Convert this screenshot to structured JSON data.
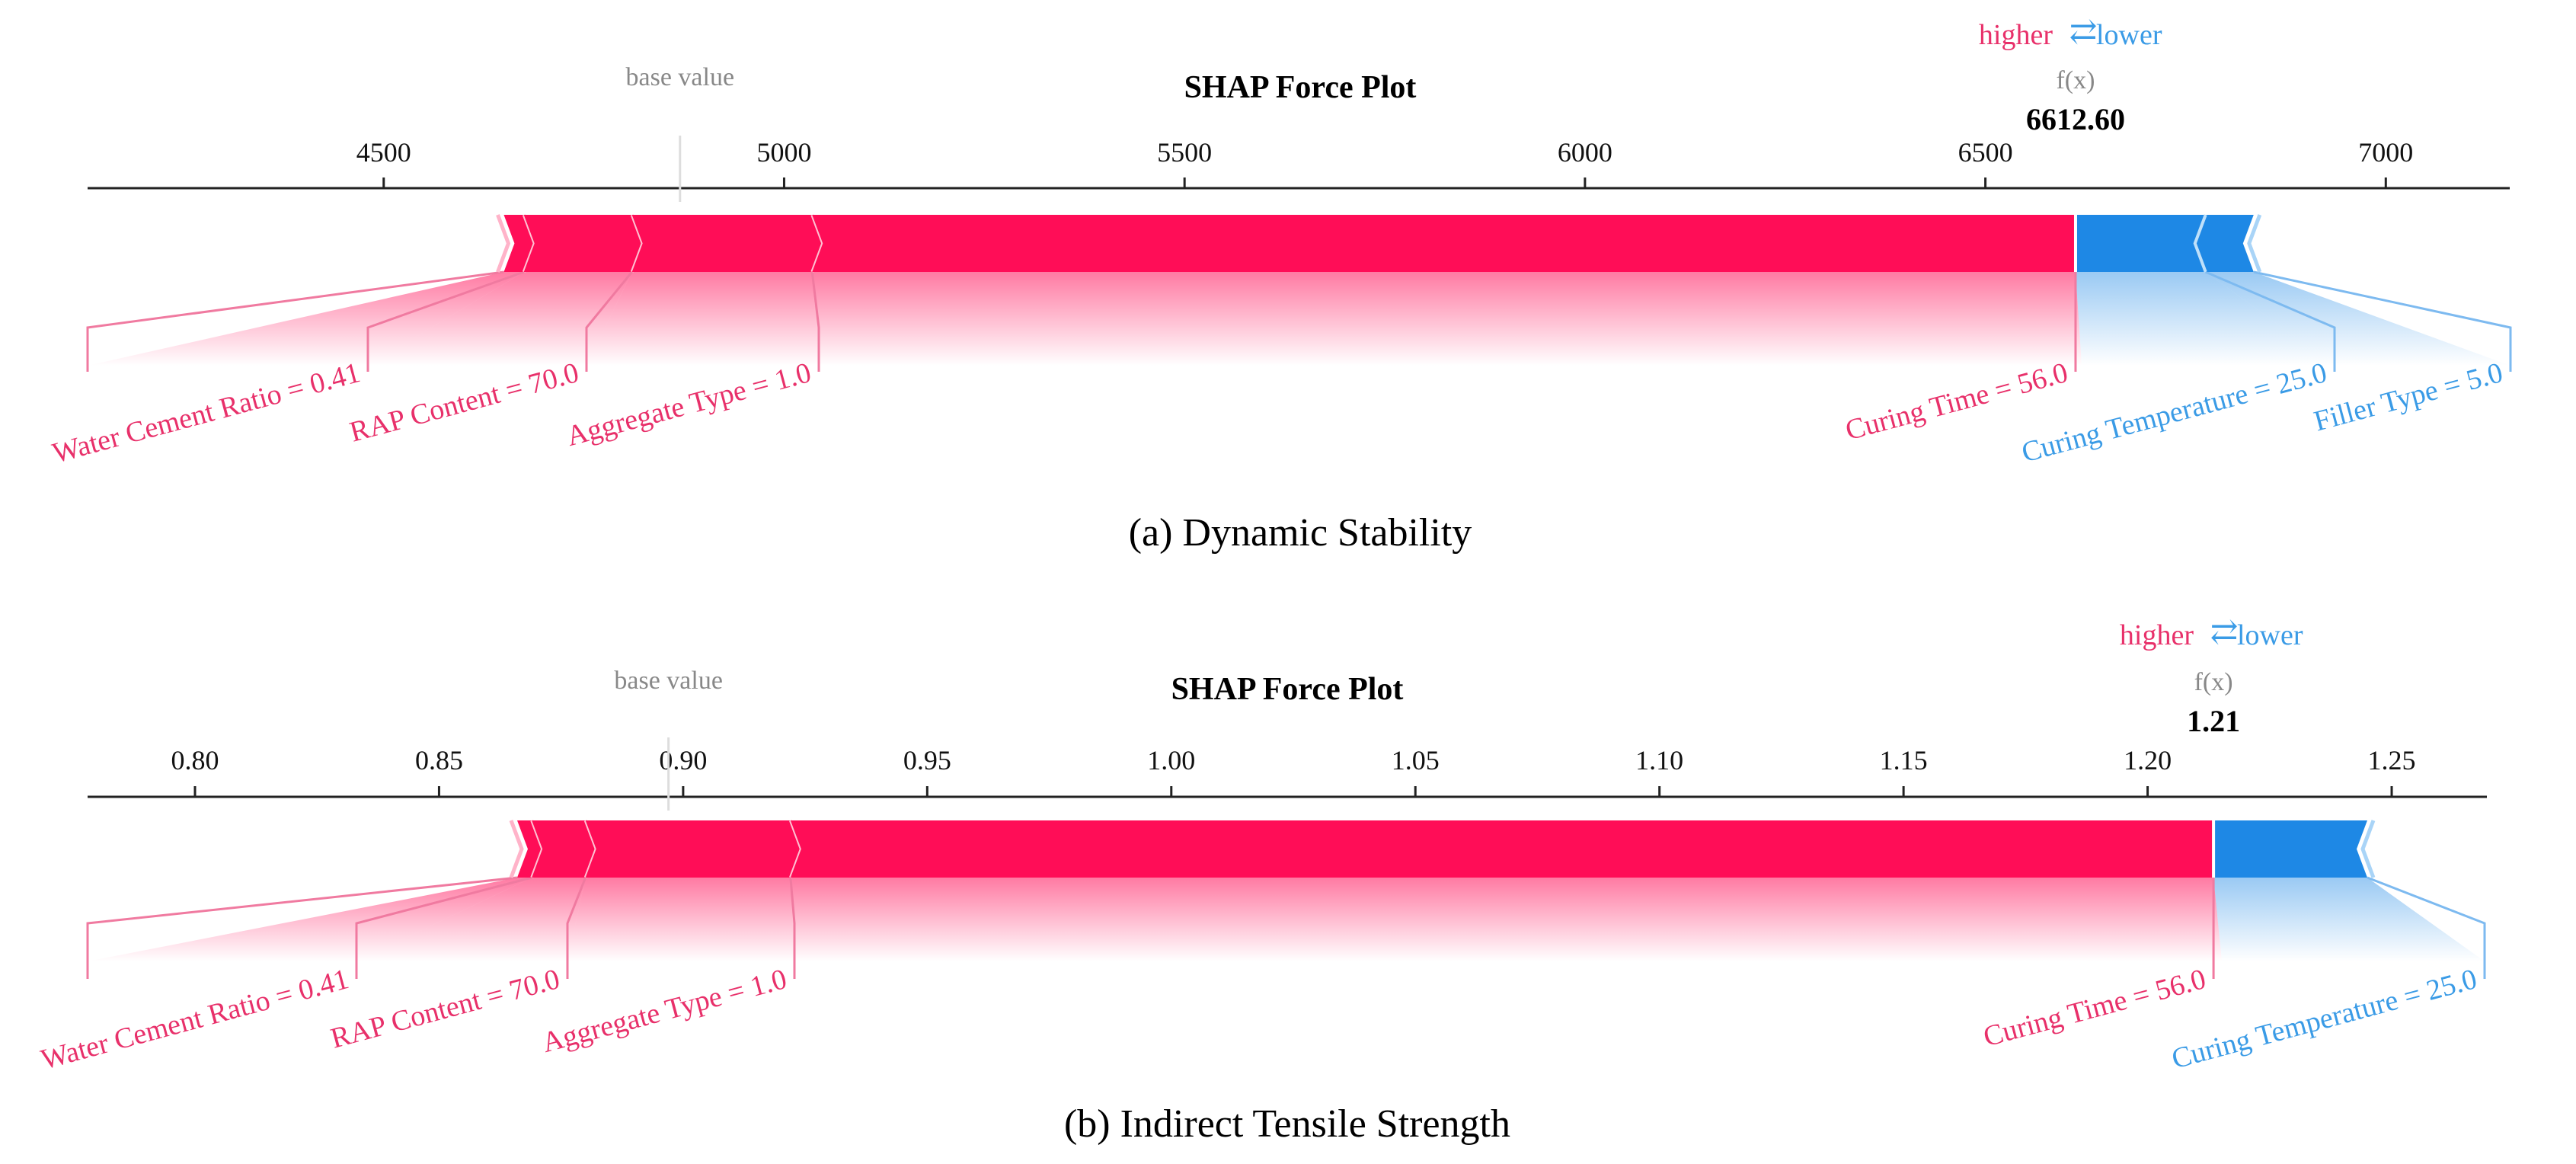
{
  "colors": {
    "positive": "#ff0d57",
    "negative": "#1e88e5",
    "positive_label": "#e8306a",
    "negative_label": "#3a9be6",
    "muted": "#888888",
    "axis": "#222222"
  },
  "chart_data": [
    {
      "type": "force",
      "title": "SHAP Force Plot",
      "caption": "(a) Dynamic Stability",
      "legend_higher": "higher",
      "legend_lower": "lower",
      "legend_arrows": "⇄",
      "base_label": "base value",
      "fx_label": "f(x)",
      "fx_text": "6612.60",
      "fx": 6612.6,
      "base_value": 4870,
      "xlim": [
        4135,
        7150
      ],
      "ticks": [
        4500,
        5000,
        5500,
        6000,
        6500,
        7000
      ],
      "tick_labels": [
        "4500",
        "5000",
        "5500",
        "6000",
        "6500",
        "7000"
      ],
      "positive_boundaries": [
        4650,
        4675,
        4810,
        5035,
        6612.6
      ],
      "negative_boundaries": [
        6612.6,
        6775,
        6835
      ],
      "features": [
        {
          "label": "Water Cement Ratio = 0.41",
          "start": 4650,
          "end": 4675,
          "sign": "positive"
        },
        {
          "label": "RAP Content = 70.0",
          "start": 4675,
          "end": 4810,
          "sign": "positive"
        },
        {
          "label": "Aggregate Type = 1.0",
          "start": 4810,
          "end": 5035,
          "sign": "positive"
        },
        {
          "label": "Curing Time = 56.0",
          "start": 5035,
          "end": 6612.6,
          "sign": "positive"
        },
        {
          "label": "Curing Temperature = 25.0",
          "start": 6612.6,
          "end": 6775,
          "sign": "negative"
        },
        {
          "label": "Filler Type = 5.0",
          "start": 6775,
          "end": 6835,
          "sign": "negative"
        }
      ]
    },
    {
      "type": "force",
      "title": "SHAP Force Plot",
      "caption": "(b) Indirect Tensile Strength",
      "legend_higher": "higher",
      "legend_lower": "lower",
      "legend_arrows": "⇄",
      "base_label": "base value",
      "fx_label": "f(x)",
      "fx_text": "1.21",
      "fx": 1.2135,
      "base_value": 0.897,
      "xlim": [
        0.778,
        1.2695
      ],
      "ticks": [
        0.8,
        0.85,
        0.9,
        0.95,
        1.0,
        1.05,
        1.1,
        1.15,
        1.2,
        1.25
      ],
      "tick_labels": [
        "0.80",
        "0.85",
        "0.90",
        "0.95",
        "1.00",
        "1.05",
        "1.10",
        "1.15",
        "1.20",
        "1.25"
      ],
      "positive_boundaries": [
        0.866,
        0.869,
        0.88,
        0.922,
        1.2135
      ],
      "negative_boundaries": [
        1.2135,
        1.245
      ],
      "features": [
        {
          "label": "Water Cement Ratio = 0.41",
          "start": 0.866,
          "end": 0.869,
          "sign": "positive"
        },
        {
          "label": "RAP Content = 70.0",
          "start": 0.869,
          "end": 0.88,
          "sign": "positive"
        },
        {
          "label": "Aggregate Type = 1.0",
          "start": 0.88,
          "end": 0.922,
          "sign": "positive"
        },
        {
          "label": "Curing Time = 56.0",
          "start": 0.922,
          "end": 1.2135,
          "sign": "positive"
        },
        {
          "label": "Curing Temperature = 25.0",
          "start": 1.2135,
          "end": 1.245,
          "sign": "negative"
        }
      ]
    }
  ]
}
